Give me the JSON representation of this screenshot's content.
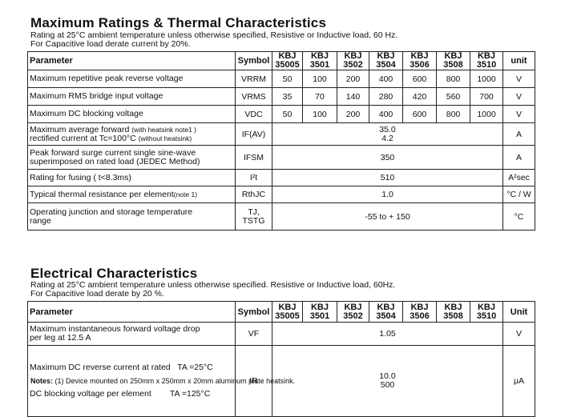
{
  "ratings": {
    "title": "Maximum Ratings & Thermal Characteristics",
    "note1": "Rating at 25°C ambient temperature unless otherwise specified, Resistive or Inductive load, 60 Hz.",
    "note2": "For Capacitive load derate current by 20%.",
    "header": {
      "parameter": "Parameter",
      "symbol": "Symbol",
      "parts": [
        {
          "a": "KBJ",
          "b": "35005"
        },
        {
          "a": "KBJ",
          "b": "3501"
        },
        {
          "a": "KBJ",
          "b": "3502"
        },
        {
          "a": "KBJ",
          "b": "3504"
        },
        {
          "a": "KBJ",
          "b": "3506"
        },
        {
          "a": "KBJ",
          "b": "3508"
        },
        {
          "a": "KBJ",
          "b": "3510"
        }
      ],
      "unit": "unit"
    },
    "rows": [
      {
        "param": "Maximum repetitive peak reverse voltage",
        "symbol": "VRRM",
        "values": [
          "50",
          "100",
          "200",
          "400",
          "600",
          "800",
          "1000"
        ],
        "unit": "V"
      },
      {
        "param": "Maximum RMS bridge input voltage",
        "symbol": "VRMS",
        "values": [
          "35",
          "70",
          "140",
          "280",
          "420",
          "560",
          "700"
        ],
        "unit": "V"
      },
      {
        "param": "Maximum DC blocking voltage",
        "symbol": "VDC",
        "values": [
          "50",
          "100",
          "200",
          "400",
          "600",
          "800",
          "1000"
        ],
        "unit": "V"
      }
    ],
    "avg_forward": {
      "param_l1": "Maximum average forward",
      "param_l1_note": "(with heatsink note1 )",
      "param_l2": "rectified current at Tc=100°C",
      "param_l2_note": "(without heatsink)",
      "symbol": "IF(AV)",
      "value1": "35.0",
      "value2": "4.2",
      "unit": "A"
    },
    "surge": {
      "param_l1": "Peak forward surge current single sine-wave",
      "param_l2": "superimposed on rated load (JEDEC Method)",
      "symbol": "IFSM",
      "value": "350",
      "unit": "A"
    },
    "fusing": {
      "param": "Rating for fusing ( t<8.3ms)",
      "symbol": "I²t",
      "value": "510",
      "unit": "A²sec"
    },
    "thermal": {
      "param": "Typical  thermal resistance per element",
      "param_note": "(note 1)",
      "symbol": "RthJC",
      "value": "1.0",
      "unit": "°C / W"
    },
    "temp": {
      "param_l1": "Operating junction and storage temperature",
      "param_l2": "range",
      "symbol_l1": "TJ,",
      "symbol_l2": "TSTG",
      "value": "-55 to + 150",
      "unit": "°C"
    }
  },
  "electrical": {
    "title": "Electrical Characteristics",
    "note1": "Rating at 25°C ambient temperature unless otherwise specified. Resistive or Inductive load, 60Hz.",
    "note2": "For Capacitive load derate by 20 %.",
    "header": {
      "parameter": "Parameter",
      "symbol": "Symbol",
      "parts": [
        {
          "a": "KBJ",
          "b": "35005"
        },
        {
          "a": "KBJ",
          "b": "3501"
        },
        {
          "a": "KBJ",
          "b": "3502"
        },
        {
          "a": "KBJ",
          "b": "3504"
        },
        {
          "a": "KBJ",
          "b": "3506"
        },
        {
          "a": "KBJ",
          "b": "3508"
        },
        {
          "a": "KBJ",
          "b": "3510"
        }
      ],
      "unit": "Unit"
    },
    "vf": {
      "param_l1": "Maximum instantaneous forward voltage drop",
      "param_l2": "per leg at 12.5 A",
      "symbol": "VF",
      "value": "1.05",
      "unit": "V"
    },
    "ir": {
      "param_l1": "Maximum DC reverse current at rated   TA =25°C",
      "param_l2": "DC blocking voltage per element        TA =125°C",
      "symbol": "IR",
      "value1": "10.0",
      "value2": "500",
      "unit": "μA"
    }
  },
  "notes": {
    "label": "Notes:",
    "text": " (1) Device mounted on 250mm x 250mm x 20mm aluminum plate heatsink."
  }
}
